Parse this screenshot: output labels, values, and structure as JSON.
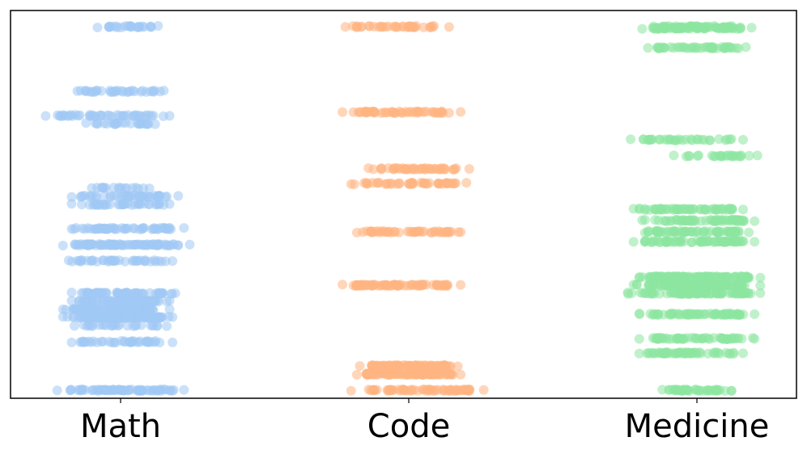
{
  "chart_data": {
    "type": "scatter",
    "title": "",
    "xlabel": "",
    "ylabel": "",
    "grid": false,
    "legend": "none",
    "categories": [
      "Math",
      "Code",
      "Medicine"
    ],
    "ylim": [
      -0.5,
      23.5
    ],
    "series": [
      {
        "category": "Math",
        "color": "#a1c9f4",
        "levels": [
          {
            "y": 0,
            "spread": [
              -0.22,
              0.22
            ],
            "count": 70
          },
          {
            "y": 3,
            "spread": [
              -0.17,
              0.18
            ],
            "count": 40
          },
          {
            "y": 4,
            "spread": [
              -0.16,
              0.16
            ],
            "count": 28
          },
          {
            "y": 4.5,
            "spread": [
              -0.2,
              0.18
            ],
            "count": 80
          },
          {
            "y": 5,
            "spread": [
              -0.2,
              0.17
            ],
            "count": 70
          },
          {
            "y": 5.5,
            "spread": [
              -0.17,
              0.17
            ],
            "count": 70
          },
          {
            "y": 6,
            "spread": [
              -0.17,
              0.19
            ],
            "count": 60
          },
          {
            "y": 8,
            "spread": [
              -0.18,
              0.18
            ],
            "count": 40
          },
          {
            "y": 9,
            "spread": [
              -0.2,
              0.24
            ],
            "count": 80
          },
          {
            "y": 10,
            "spread": [
              -0.17,
              0.22
            ],
            "count": 55
          },
          {
            "y": 11.5,
            "spread": [
              -0.17,
              0.17
            ],
            "count": 40
          },
          {
            "y": 12,
            "spread": [
              -0.17,
              0.2
            ],
            "count": 45
          },
          {
            "y": 12.5,
            "spread": [
              -0.1,
              0.1
            ],
            "count": 18
          },
          {
            "y": 16.5,
            "spread": [
              -0.12,
              0.12
            ],
            "count": 25
          },
          {
            "y": 17,
            "spread": [
              -0.26,
              0.17
            ],
            "count": 45
          },
          {
            "y": 18.5,
            "spread": [
              -0.15,
              0.15
            ],
            "count": 35
          },
          {
            "y": 22.5,
            "spread": [
              -0.08,
              0.13
            ],
            "count": 25
          }
        ]
      },
      {
        "category": "Code",
        "color": "#ffb482",
        "levels": [
          {
            "y": 0,
            "spread": [
              -0.2,
              0.26
            ],
            "count": 70
          },
          {
            "y": 1,
            "spread": [
              -0.18,
              0.18
            ],
            "count": 100
          },
          {
            "y": 1.5,
            "spread": [
              -0.17,
              0.17
            ],
            "count": 90
          },
          {
            "y": 6.5,
            "spread": [
              -0.23,
              0.18
            ],
            "count": 70
          },
          {
            "y": 9.8,
            "spread": [
              -0.18,
              0.18
            ],
            "count": 50
          },
          {
            "y": 12.8,
            "spread": [
              -0.2,
              0.2
            ],
            "count": 50
          },
          {
            "y": 13.7,
            "spread": [
              -0.14,
              0.21
            ],
            "count": 45
          },
          {
            "y": 17.2,
            "spread": [
              -0.23,
              0.18
            ],
            "count": 55
          },
          {
            "y": 22.5,
            "spread": [
              -0.22,
              0.14
            ],
            "count": 40
          }
        ]
      },
      {
        "category": "Medicine",
        "color": "#8de5a1",
        "levels": [
          {
            "y": 0,
            "spread": [
              -0.12,
              0.12
            ],
            "count": 40
          },
          {
            "y": 2.3,
            "spread": [
              -0.2,
              0.16
            ],
            "count": 55
          },
          {
            "y": 3.2,
            "spread": [
              -0.2,
              0.2
            ],
            "count": 55
          },
          {
            "y": 4.7,
            "spread": [
              -0.2,
              0.2
            ],
            "count": 65
          },
          {
            "y": 6,
            "spread": [
              -0.24,
              0.22
            ],
            "count": 90
          },
          {
            "y": 6.5,
            "spread": [
              -0.22,
              0.22
            ],
            "count": 110
          },
          {
            "y": 7,
            "spread": [
              -0.2,
              0.22
            ],
            "count": 110
          },
          {
            "y": 9.2,
            "spread": [
              -0.22,
              0.2
            ],
            "count": 70
          },
          {
            "y": 9.8,
            "spread": [
              -0.18,
              0.18
            ],
            "count": 70
          },
          {
            "y": 10.5,
            "spread": [
              -0.19,
              0.2
            ],
            "count": 65
          },
          {
            "y": 11.2,
            "spread": [
              -0.22,
              0.16
            ],
            "count": 60
          },
          {
            "y": 14.5,
            "spread": [
              -0.08,
              0.21
            ],
            "count": 25
          },
          {
            "y": 15.5,
            "spread": [
              -0.23,
              0.16
            ],
            "count": 35
          },
          {
            "y": 21.2,
            "spread": [
              -0.17,
              0.17
            ],
            "count": 50
          },
          {
            "y": 22.4,
            "spread": [
              -0.19,
              0.19
            ],
            "count": 65
          },
          {
            "y": 22.5,
            "spread": [
              -0.15,
              0.15
            ],
            "count": 40
          }
        ]
      }
    ]
  }
}
